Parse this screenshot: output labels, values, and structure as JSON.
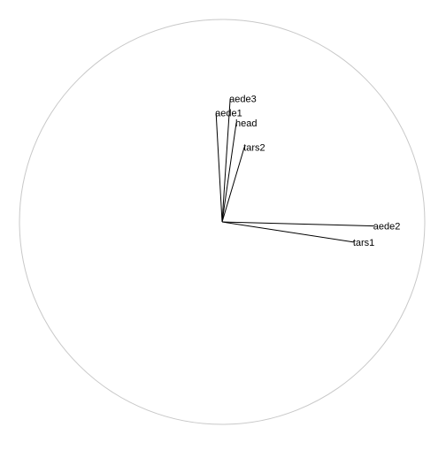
{
  "chart_data": {
    "type": "correlation-circle",
    "title": "",
    "xlabel": "",
    "ylabel": "",
    "xlim": [
      -1,
      1
    ],
    "ylim": [
      -1,
      1
    ],
    "grid": false,
    "circle_color": "#c8c8c8",
    "arrow_color": "#000000",
    "variables": [
      {
        "name": "aede3",
        "x": 0.04,
        "y": 0.61
      },
      {
        "name": "aede1",
        "x": -0.03,
        "y": 0.54
      },
      {
        "name": "head",
        "x": 0.07,
        "y": 0.49
      },
      {
        "name": "tars2",
        "x": 0.11,
        "y": 0.37
      },
      {
        "name": "aede2",
        "x": 0.75,
        "y": -0.02
      },
      {
        "name": "tars1",
        "x": 0.65,
        "y": -0.1
      }
    ]
  }
}
